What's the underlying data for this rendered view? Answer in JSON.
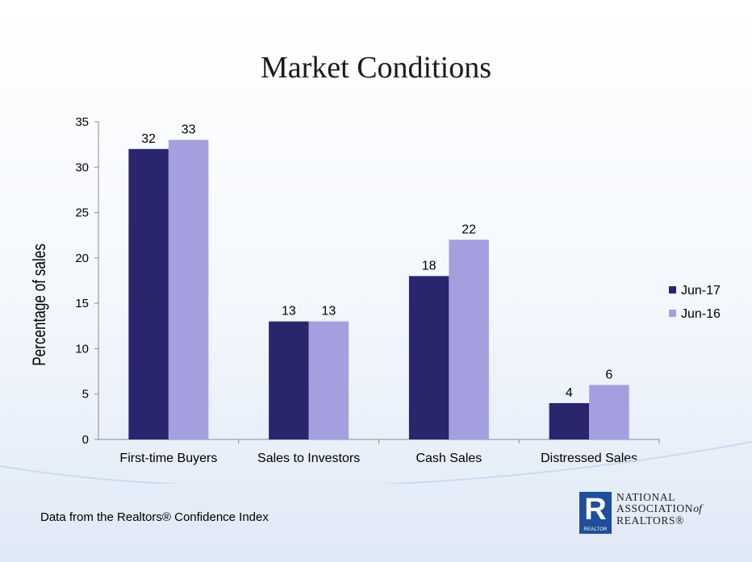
{
  "title": "Market Conditions",
  "footnote": "Data from the Realtors® Confidence Index",
  "logo": {
    "mark": "R",
    "tag": "REALTOR",
    "line1": "NATIONAL",
    "line2": "ASSOCIATION",
    "line2_suffix": "of",
    "line3": "REALTORS®"
  },
  "colors": {
    "series1": "#29266e",
    "series2": "#a4a0e0"
  },
  "chart_data": {
    "type": "bar",
    "title": "Market Conditions",
    "ylabel": "Percentage of  sales",
    "xlabel": "",
    "categories": [
      "First-time Buyers",
      "Sales to Investors",
      "Cash Sales",
      "Distressed Sales"
    ],
    "series": [
      {
        "name": "Jun-17",
        "values": [
          32,
          13,
          18,
          4
        ]
      },
      {
        "name": "Jun-16",
        "values": [
          33,
          13,
          22,
          6
        ]
      }
    ],
    "ylim": [
      0,
      35
    ],
    "yticks": [
      0,
      5,
      10,
      15,
      20,
      25,
      30,
      35
    ],
    "data_labels": true,
    "grid": false,
    "legend_position": "right"
  }
}
